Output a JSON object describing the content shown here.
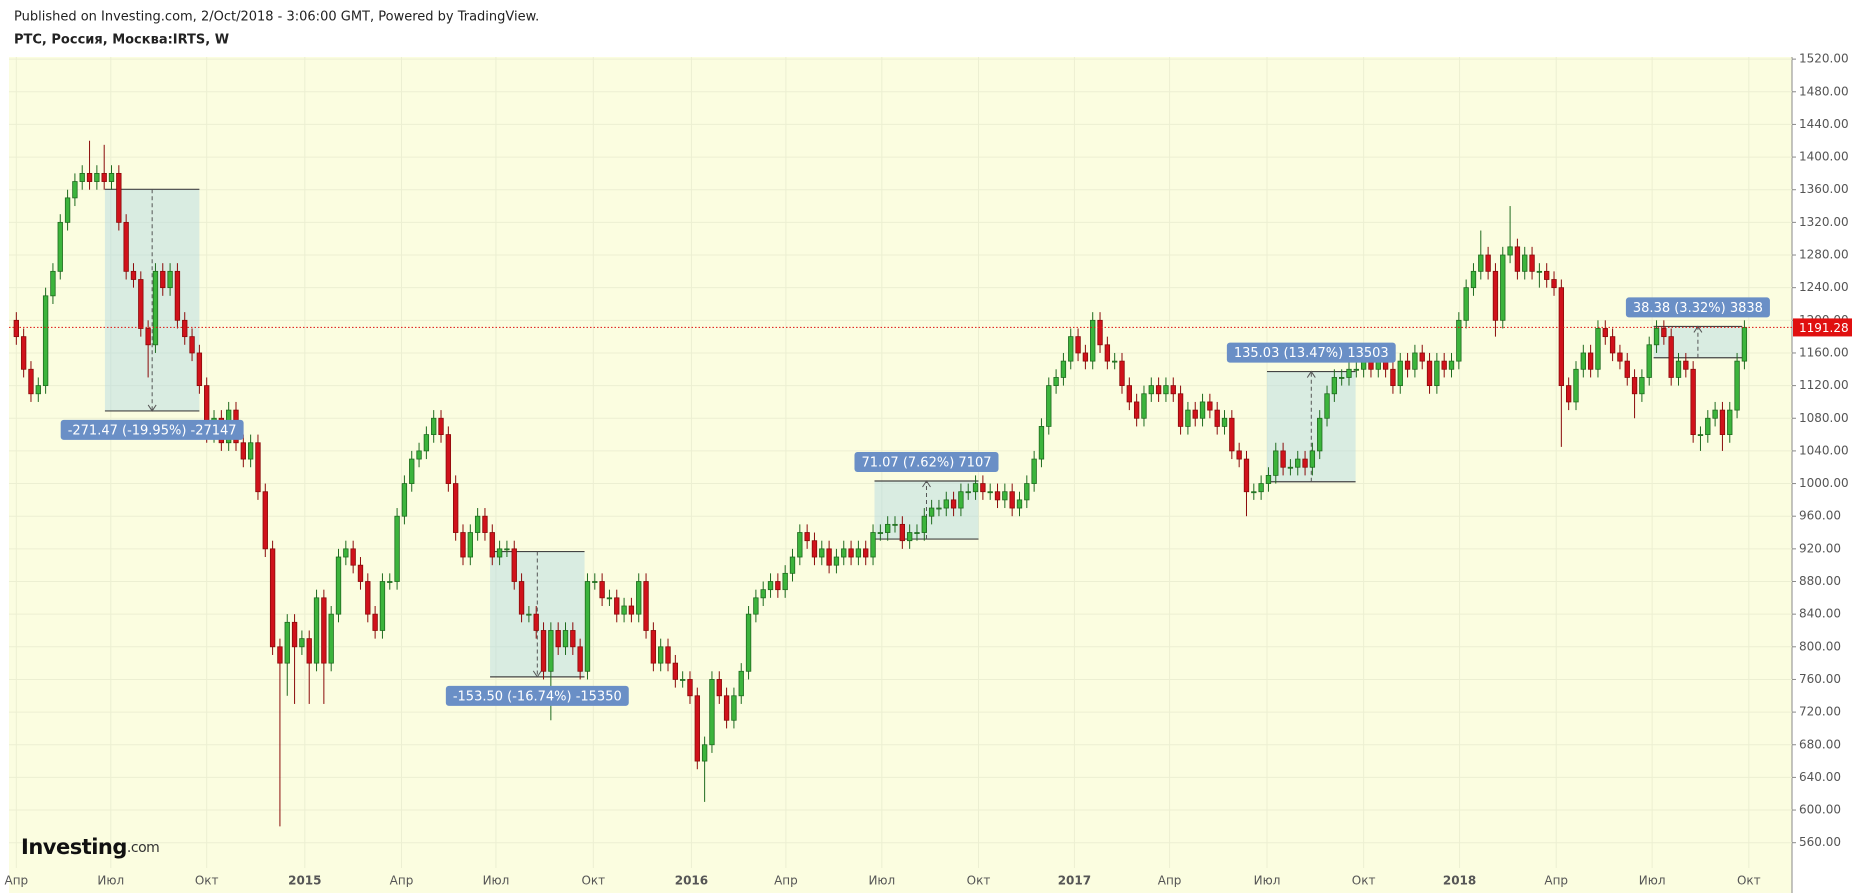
{
  "chart_data": {
    "type": "candlestick",
    "subtitle": "Published on Investing.com, 2/Oct/2018 - 3:06:00 GMT, Powered by TradingView.",
    "title": "РТС, Россия, Москва:IRTS, W",
    "logo": "Investing",
    "logo_suffix": ".com",
    "up_color": "#3cb43c",
    "down_color": "#d0121b",
    "grid": true,
    "xlim": [
      -1,
      242.5
    ],
    "ylim": [
      529,
      1522.6
    ],
    "xticks": [
      {
        "value": 0,
        "label": "Апр"
      },
      {
        "value": 12.9,
        "label": "Июл"
      },
      {
        "value": 26.0,
        "label": "Окт"
      },
      {
        "value": 39.4,
        "label": "2015"
      },
      {
        "value": 52.6,
        "label": "Апр"
      },
      {
        "value": 65.5,
        "label": "Июл"
      },
      {
        "value": 78.8,
        "label": "Окт"
      },
      {
        "value": 92.2,
        "label": "2016"
      },
      {
        "value": 105.1,
        "label": "Апр"
      },
      {
        "value": 118.2,
        "label": "Июл"
      },
      {
        "value": 131.4,
        "label": "Окт"
      },
      {
        "value": 144.5,
        "label": "2017"
      },
      {
        "value": 157.5,
        "label": "Апр"
      },
      {
        "value": 170.8,
        "label": "Июл"
      },
      {
        "value": 184.0,
        "label": "Окт"
      },
      {
        "value": 197.1,
        "label": "2018"
      },
      {
        "value": 210.3,
        "label": "Апр"
      },
      {
        "value": 223.4,
        "label": "Июл"
      },
      {
        "value": 236.6,
        "label": "Окт"
      }
    ],
    "yticks": [
      {
        "value": 560,
        "label": "560.00"
      },
      {
        "value": 600,
        "label": "600.00"
      },
      {
        "value": 640,
        "label": "640.00"
      },
      {
        "value": 680,
        "label": "680.00"
      },
      {
        "value": 720,
        "label": "720.00"
      },
      {
        "value": 760,
        "label": "760.00"
      },
      {
        "value": 800,
        "label": "800.00"
      },
      {
        "value": 840,
        "label": "840.00"
      },
      {
        "value": 880,
        "label": "880.00"
      },
      {
        "value": 920,
        "label": "920.00"
      },
      {
        "value": 960,
        "label": "960.00"
      },
      {
        "value": 1000,
        "label": "1000.00"
      },
      {
        "value": 1040,
        "label": "1040.00"
      },
      {
        "value": 1080,
        "label": "1080.00"
      },
      {
        "value": 1120,
        "label": "1120.00"
      },
      {
        "value": 1160,
        "label": "1160.00"
      },
      {
        "value": 1200,
        "label": "1200.00"
      },
      {
        "value": 1240,
        "label": "1240.00"
      },
      {
        "value": 1280,
        "label": "1280.00"
      },
      {
        "value": 1320,
        "label": "1320.00"
      },
      {
        "value": 1360,
        "label": "1360.00"
      },
      {
        "value": 1400,
        "label": "1400.00"
      },
      {
        "value": 1440,
        "label": "1440.00"
      },
      {
        "value": 1480,
        "label": "1480.00"
      },
      {
        "value": 1520,
        "label": "1520.00"
      }
    ],
    "last_price": 1191.28,
    "last_price_color": "#e01010",
    "open": [
      1200,
      1180,
      1140,
      1110,
      1120,
      1230,
      1260,
      1320,
      1350,
      1370,
      1380,
      1370,
      1380,
      1370,
      1380,
      1320,
      1260,
      1250,
      1190,
      1170,
      1260,
      1240,
      1260,
      1200,
      1180,
      1160,
      1120,
      1060,
      1080,
      1050,
      1090,
      1050,
      1030,
      1050,
      990,
      920,
      800,
      780,
      830,
      800,
      810,
      780,
      860,
      780,
      840,
      910,
      920,
      900,
      880,
      840,
      820,
      880,
      880,
      960,
      1000,
      1030,
      1040,
      1060,
      1080,
      1060,
      1000,
      940,
      910,
      940,
      960,
      940,
      910,
      920,
      920,
      880,
      840,
      840,
      820,
      770,
      820,
      800,
      820,
      800,
      770,
      880,
      880,
      860,
      860,
      840,
      850,
      840,
      880,
      820,
      780,
      800,
      780,
      760,
      760,
      740,
      660,
      680,
      760,
      740,
      710,
      740,
      770,
      840,
      860,
      870,
      880,
      870,
      890,
      910,
      940,
      930,
      910,
      920,
      900,
      910,
      920,
      910,
      920,
      910,
      940,
      940,
      950,
      950,
      930,
      940,
      940,
      960,
      970,
      970,
      980,
      970,
      990,
      990,
      1000,
      990,
      990,
      980,
      990,
      970,
      980,
      1000,
      1030,
      1070,
      1120,
      1130,
      1150,
      1180,
      1160,
      1150,
      1200,
      1170,
      1150,
      1150,
      1120,
      1100,
      1080,
      1110,
      1120,
      1110,
      1120,
      1110,
      1070,
      1090,
      1080,
      1100,
      1090,
      1070,
      1080,
      1040,
      1030,
      990,
      990,
      1000,
      1010,
      1040,
      1020,
      1020,
      1030,
      1020,
      1040,
      1080,
      1110,
      1130,
      1130,
      1140,
      1140,
      1150,
      1140,
      1160,
      1140,
      1120,
      1150,
      1140,
      1160,
      1150,
      1120,
      1150,
      1140,
      1150,
      1200,
      1240,
      1260,
      1280,
      1260,
      1200,
      1280,
      1290,
      1260,
      1280,
      1260,
      1260,
      1250,
      1240,
      1120,
      1100,
      1140,
      1160,
      1140,
      1190,
      1180,
      1160,
      1150,
      1130,
      1110,
      1130,
      1170,
      1190,
      1180,
      1130,
      1150,
      1140,
      1060,
      1060,
      1080,
      1090,
      1060,
      1090,
      1150
    ],
    "high": [
      1210,
      1190,
      1150,
      1130,
      1240,
      1270,
      1330,
      1360,
      1380,
      1390,
      1420,
      1390,
      1415,
      1390,
      1390,
      1330,
      1270,
      1260,
      1200,
      1270,
      1270,
      1270,
      1270,
      1210,
      1190,
      1170,
      1130,
      1090,
      1090,
      1100,
      1100,
      1060,
      1060,
      1060,
      1000,
      930,
      810,
      840,
      840,
      820,
      820,
      870,
      870,
      850,
      920,
      930,
      930,
      910,
      890,
      850,
      890,
      890,
      970,
      1010,
      1040,
      1050,
      1070,
      1090,
      1090,
      1070,
      1010,
      950,
      950,
      970,
      970,
      950,
      930,
      930,
      930,
      890,
      850,
      850,
      830,
      830,
      830,
      830,
      830,
      810,
      890,
      890,
      890,
      870,
      870,
      860,
      860,
      890,
      890,
      830,
      810,
      810,
      790,
      770,
      770,
      750,
      690,
      770,
      770,
      750,
      750,
      780,
      850,
      870,
      880,
      890,
      890,
      900,
      920,
      950,
      950,
      940,
      930,
      930,
      920,
      930,
      930,
      930,
      930,
      950,
      950,
      960,
      960,
      960,
      950,
      950,
      970,
      980,
      980,
      990,
      990,
      1000,
      1000,
      1010,
      1010,
      1000,
      1000,
      1000,
      1000,
      990,
      1010,
      1040,
      1080,
      1130,
      1140,
      1160,
      1190,
      1190,
      1170,
      1210,
      1210,
      1180,
      1160,
      1160,
      1130,
      1110,
      1120,
      1130,
      1130,
      1130,
      1130,
      1120,
      1100,
      1100,
      1110,
      1110,
      1100,
      1090,
      1090,
      1050,
      1040,
      1000,
      1010,
      1020,
      1050,
      1050,
      1030,
      1040,
      1040,
      1050,
      1090,
      1120,
      1140,
      1140,
      1150,
      1150,
      1160,
      1160,
      1170,
      1170,
      1150,
      1160,
      1160,
      1170,
      1170,
      1160,
      1160,
      1160,
      1160,
      1210,
      1250,
      1270,
      1310,
      1290,
      1270,
      1290,
      1340,
      1300,
      1290,
      1290,
      1270,
      1270,
      1260,
      1250,
      1130,
      1150,
      1170,
      1170,
      1200,
      1200,
      1190,
      1170,
      1160,
      1140,
      1140,
      1180,
      1200,
      1200,
      1190,
      1160,
      1160,
      1150,
      1070,
      1090,
      1100,
      1100,
      1100,
      1160,
      1200
    ],
    "low": [
      1170,
      1130,
      1100,
      1100,
      1110,
      1220,
      1250,
      1310,
      1340,
      1360,
      1360,
      1360,
      1360,
      1360,
      1310,
      1250,
      1240,
      1180,
      1130,
      1160,
      1230,
      1230,
      1190,
      1170,
      1150,
      1110,
      1050,
      1050,
      1040,
      1040,
      1040,
      1020,
      1020,
      980,
      910,
      790,
      580,
      740,
      730,
      790,
      730,
      770,
      730,
      770,
      830,
      900,
      890,
      870,
      830,
      810,
      810,
      870,
      870,
      950,
      990,
      1020,
      1030,
      1050,
      1050,
      990,
      930,
      900,
      900,
      930,
      930,
      900,
      900,
      910,
      870,
      830,
      830,
      810,
      760,
      710,
      790,
      790,
      790,
      760,
      760,
      870,
      850,
      850,
      830,
      830,
      830,
      830,
      810,
      770,
      770,
      770,
      750,
      750,
      730,
      650,
      610,
      670,
      730,
      700,
      700,
      730,
      760,
      830,
      850,
      860,
      860,
      860,
      880,
      900,
      920,
      900,
      900,
      890,
      890,
      900,
      900,
      900,
      900,
      900,
      930,
      930,
      940,
      920,
      920,
      930,
      930,
      950,
      960,
      960,
      960,
      960,
      980,
      980,
      980,
      980,
      970,
      970,
      960,
      960,
      970,
      990,
      1020,
      1060,
      1110,
      1120,
      1140,
      1150,
      1140,
      1140,
      1160,
      1140,
      1140,
      1110,
      1090,
      1070,
      1070,
      1100,
      1100,
      1100,
      1100,
      1060,
      1060,
      1070,
      1070,
      1080,
      1060,
      1060,
      1030,
      1020,
      960,
      980,
      980,
      990,
      1000,
      1010,
      1010,
      1010,
      1010,
      1010,
      1030,
      1070,
      1100,
      1120,
      1120,
      1130,
      1130,
      1130,
      1130,
      1130,
      1110,
      1110,
      1130,
      1130,
      1140,
      1110,
      1110,
      1130,
      1130,
      1140,
      1190,
      1230,
      1250,
      1250,
      1180,
      1190,
      1270,
      1250,
      1250,
      1250,
      1240,
      1240,
      1230,
      1045,
      1090,
      1090,
      1130,
      1130,
      1130,
      1170,
      1150,
      1140,
      1120,
      1080,
      1100,
      1120,
      1160,
      1170,
      1120,
      1120,
      1130,
      1050,
      1040,
      1050,
      1070,
      1040,
      1050,
      1080,
      1140
    ],
    "close": [
      1180,
      1140,
      1110,
      1120,
      1230,
      1260,
      1320,
      1350,
      1370,
      1380,
      1370,
      1380,
      1370,
      1380,
      1320,
      1260,
      1250,
      1190,
      1170,
      1260,
      1240,
      1260,
      1200,
      1180,
      1160,
      1120,
      1060,
      1080,
      1050,
      1090,
      1050,
      1030,
      1050,
      990,
      920,
      800,
      780,
      830,
      800,
      810,
      780,
      860,
      780,
      840,
      910,
      920,
      900,
      880,
      840,
      820,
      880,
      880,
      960,
      1000,
      1030,
      1040,
      1060,
      1080,
      1060,
      1000,
      940,
      910,
      940,
      960,
      940,
      910,
      920,
      920,
      880,
      840,
      840,
      820,
      770,
      820,
      800,
      820,
      800,
      770,
      880,
      880,
      860,
      860,
      840,
      850,
      840,
      880,
      820,
      780,
      800,
      780,
      760,
      760,
      740,
      660,
      680,
      760,
      740,
      710,
      740,
      770,
      840,
      860,
      870,
      880,
      870,
      890,
      910,
      940,
      930,
      910,
      920,
      900,
      910,
      920,
      910,
      920,
      910,
      940,
      940,
      950,
      950,
      930,
      940,
      940,
      960,
      970,
      970,
      980,
      970,
      990,
      990,
      1000,
      990,
      990,
      980,
      990,
      970,
      980,
      1000,
      1030,
      1070,
      1120,
      1130,
      1150,
      1180,
      1160,
      1150,
      1200,
      1170,
      1150,
      1150,
      1120,
      1100,
      1080,
      1110,
      1120,
      1110,
      1120,
      1110,
      1070,
      1090,
      1080,
      1100,
      1090,
      1070,
      1080,
      1040,
      1030,
      990,
      990,
      1000,
      1010,
      1040,
      1020,
      1020,
      1030,
      1020,
      1040,
      1080,
      1110,
      1130,
      1130,
      1140,
      1140,
      1150,
      1140,
      1160,
      1140,
      1120,
      1150,
      1140,
      1160,
      1150,
      1120,
      1150,
      1140,
      1150,
      1200,
      1240,
      1260,
      1280,
      1260,
      1200,
      1280,
      1290,
      1260,
      1280,
      1260,
      1260,
      1250,
      1240,
      1120,
      1100,
      1140,
      1160,
      1140,
      1190,
      1180,
      1160,
      1150,
      1130,
      1110,
      1130,
      1170,
      1190,
      1180,
      1130,
      1150,
      1140,
      1060,
      1060,
      1080,
      1090,
      1060,
      1090,
      1150,
      1191.28
    ],
    "annotations": [
      {
        "label": "-271.47 (-19.95%) -27147",
        "start": 12.1,
        "end": 25.0,
        "from": 1360.5,
        "to": 1089.0
      },
      {
        "label": "-153.50 (-16.74%) -15350",
        "start": 64.7,
        "end": 77.6,
        "from": 916.7,
        "to": 763.2
      },
      {
        "label": "71.07 (7.62%) 7107",
        "start": 117.2,
        "end": 131.4,
        "from": 932.0,
        "to": 1003.1
      },
      {
        "label": "135.03 (13.47%) 13503",
        "start": 170.8,
        "end": 182.9,
        "from": 1002.2,
        "to": 1137.2
      },
      {
        "label": "38.38 (3.32%) 3838",
        "start": 223.6,
        "end": 235.7,
        "from": 1154.1,
        "to": 1192.5
      }
    ]
  }
}
